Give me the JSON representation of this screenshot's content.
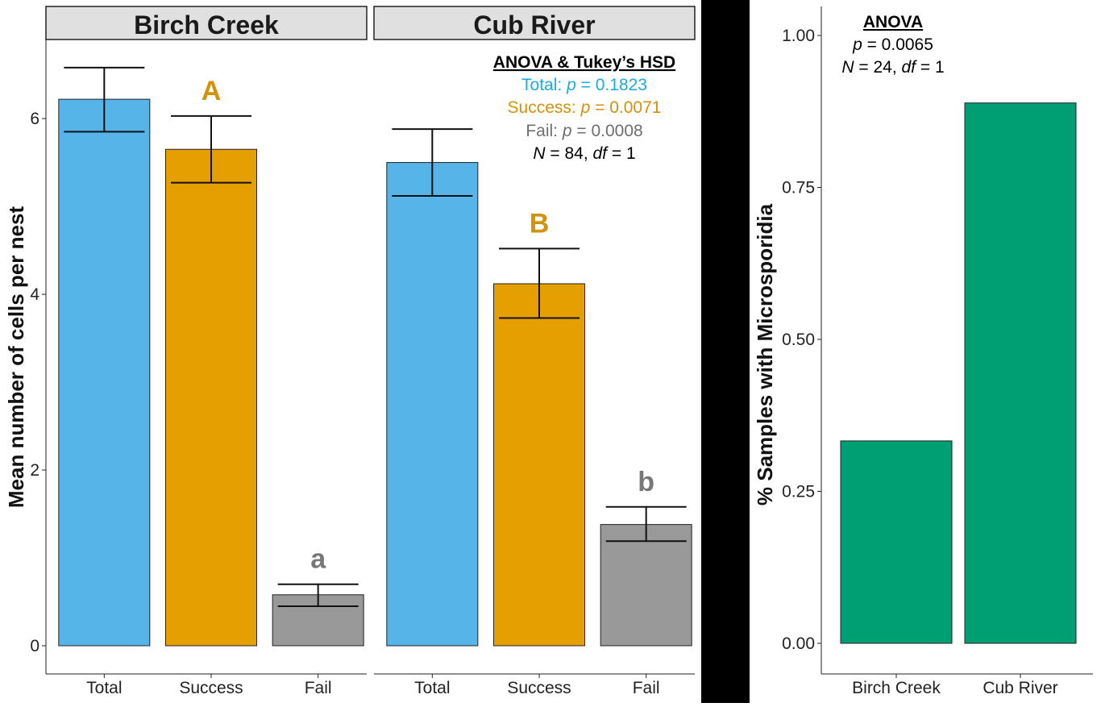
{
  "chart_data": [
    {
      "type": "bar",
      "facets": [
        "Birch Creek",
        "Cub River"
      ],
      "categories": [
        "Total",
        "Success",
        "Fail"
      ],
      "ylabel": "Mean number of cells per nest",
      "ylim": [
        0,
        6.9
      ],
      "yticks": [
        0,
        2,
        4,
        6
      ],
      "grid": false,
      "series": [
        {
          "facet": "Birch Creek",
          "values": [
            6.22,
            5.65,
            0.58
          ],
          "error_low": [
            5.85,
            5.27,
            0.45
          ],
          "error_high": [
            6.58,
            6.03,
            0.7
          ],
          "letters": [
            "",
            "A",
            "a"
          ]
        },
        {
          "facet": "Cub River",
          "values": [
            5.5,
            4.12,
            1.38
          ],
          "error_low": [
            5.12,
            3.73,
            1.19
          ],
          "error_high": [
            5.88,
            4.52,
            1.58
          ],
          "letters": [
            "",
            "B",
            "b"
          ]
        }
      ],
      "bar_colors": [
        "#56B4E9",
        "#E69F00",
        "#999999"
      ],
      "letter_colors": [
        "#000000",
        "#D4920A",
        "#777777"
      ],
      "annotation": {
        "title": "ANOVA & Tukey’s HSD",
        "total_prefix": "Total: ",
        "total_p": "p",
        "total_value": " = 0.1823",
        "success_prefix": "Success: ",
        "success_p": "p",
        "success_value": " = 0.0071",
        "fail_prefix": "Fail: ",
        "fail_p": "p",
        "fail_value": " = 0.0008",
        "n_label": "N",
        "n_value": " = 84, ",
        "df_label": "df",
        "df_value": " = 1",
        "total_color": "#1AABE3",
        "success_color": "#D4920A",
        "fail_color": "#6E6E6E"
      }
    },
    {
      "type": "bar",
      "categories": [
        "Birch Creek",
        "Cub River"
      ],
      "values": [
        0.333,
        0.889
      ],
      "ylabel": "% Samples with Microsporidia",
      "ylim": [
        0,
        1.05
      ],
      "yticks": [
        "0.00",
        "0.25",
        "0.50",
        "0.75",
        "1.00"
      ],
      "grid": false,
      "bar_color": "#009E73",
      "annotation": {
        "title": "ANOVA",
        "p_label": "p",
        "p_value": " = 0.0065",
        "n_label": "N",
        "n_value": " = 24, ",
        "df_label": "df",
        "df_value": " = 1"
      }
    }
  ]
}
